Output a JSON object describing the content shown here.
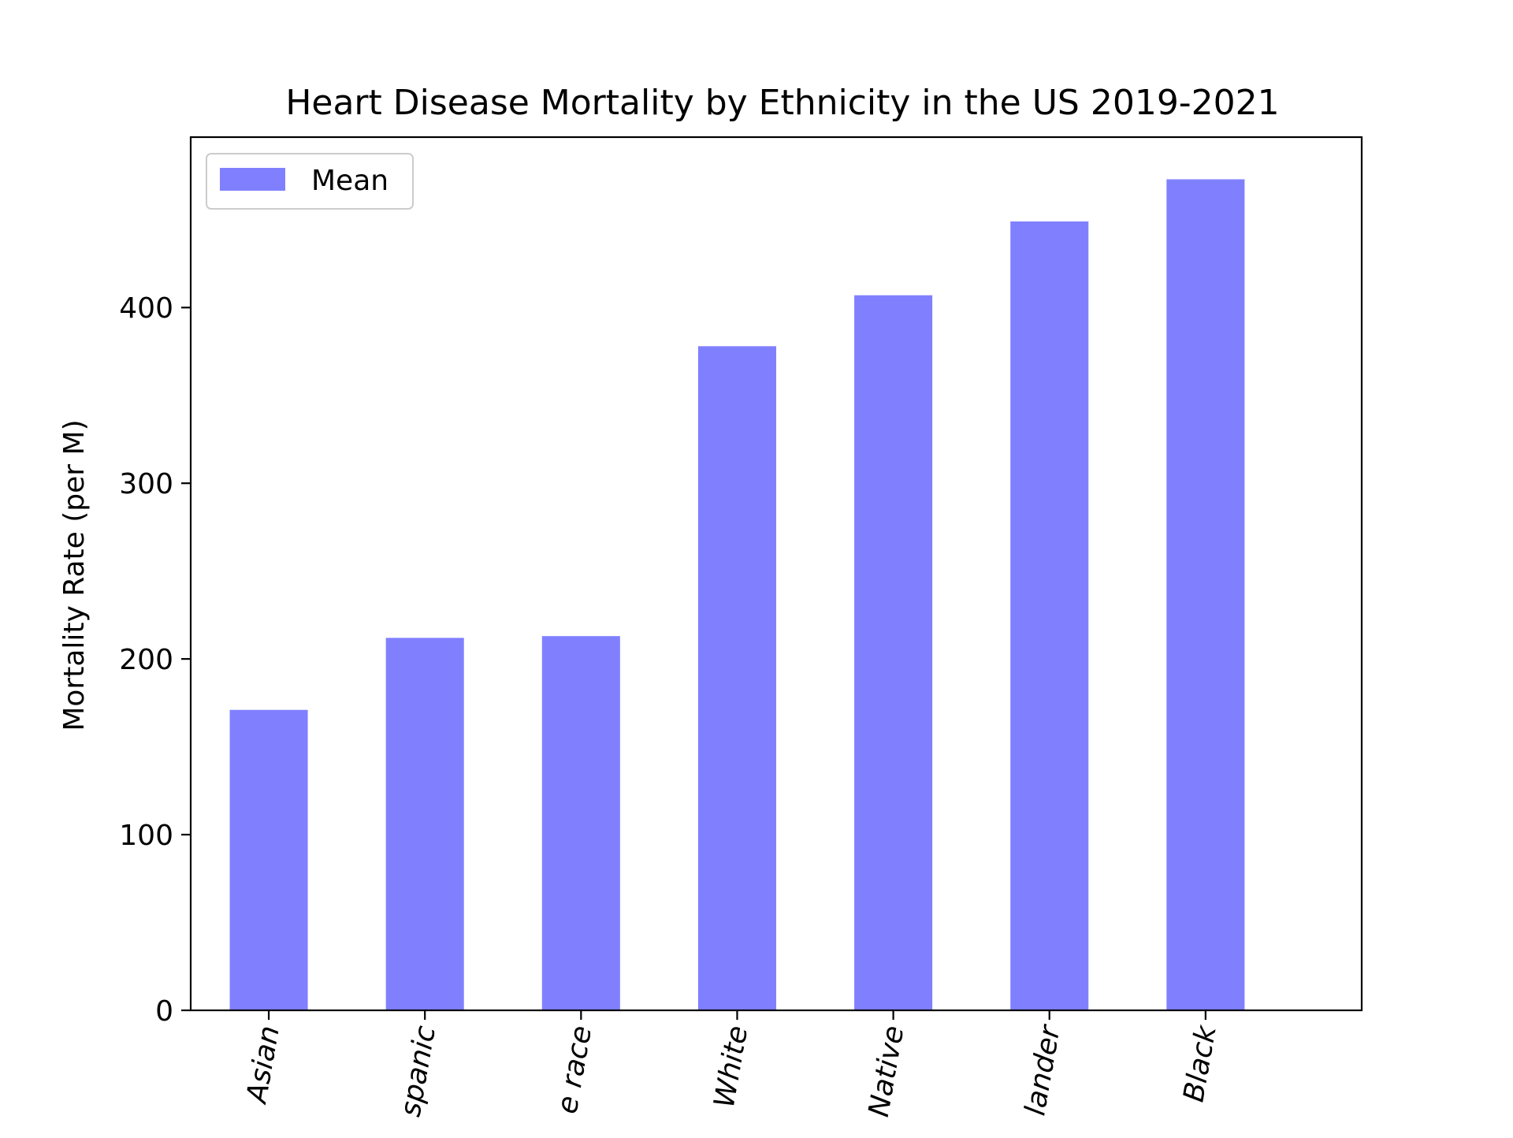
{
  "chart_data": {
    "type": "bar",
    "title": "Heart Disease Mortality by Ethnicity in the US 2019-2021",
    "xlabel": "",
    "ylabel": "Mortality Rate (per M)",
    "ylim": [
      0,
      497
    ],
    "yticks": [
      0,
      100,
      200,
      300,
      400
    ],
    "categories": [
      "Asian",
      "spanic",
      "e race",
      "White",
      "Native",
      "lander",
      "Black"
    ],
    "series": [
      {
        "name": "Mean",
        "color": "#8080ff",
        "values": [
          171,
          212,
          213,
          378,
          407,
          449,
          473
        ]
      }
    ],
    "legend_position": "top-left",
    "grid": false
  }
}
